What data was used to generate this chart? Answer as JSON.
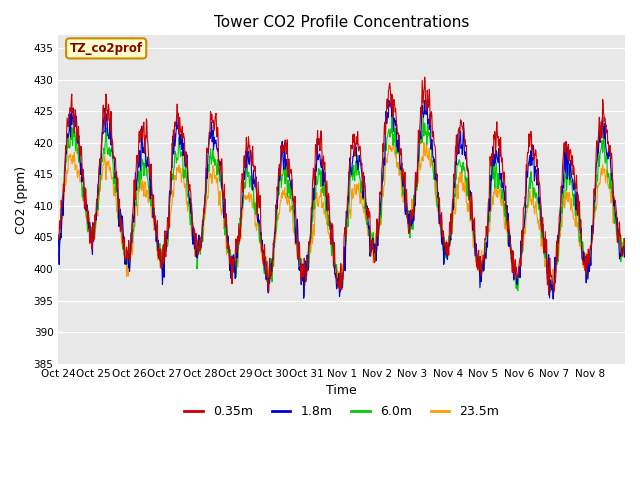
{
  "title": "Tower CO2 Profile Concentrations",
  "xlabel": "Time",
  "ylabel": "CO2 (ppm)",
  "ylim": [
    385,
    437
  ],
  "yticks": [
    385,
    390,
    395,
    400,
    405,
    410,
    415,
    420,
    425,
    430,
    435
  ],
  "annotation": "TZ_co2prof",
  "lines": [
    {
      "label": "0.35m",
      "color": "#cc0000",
      "lw": 0.8
    },
    {
      "label": "1.8m",
      "color": "#0000cc",
      "lw": 0.8
    },
    {
      "label": "6.0m",
      "color": "#00cc00",
      "lw": 0.8
    },
    {
      "label": "23.5m",
      "color": "#ff9900",
      "lw": 0.8
    }
  ],
  "bg_color": "#e8e8e8",
  "fig_bg": "#ffffff",
  "n_points": 1344,
  "xtick_labels": [
    "Oct 24",
    "Oct 25",
    "Oct 26",
    "Oct 27",
    "Oct 28",
    "Oct 29",
    "Oct 30",
    "Oct 31",
    "Nov 1",
    "Nov 2",
    "Nov 3",
    "Nov 4",
    "Nov 5",
    "Nov 6",
    "Nov 7",
    "Nov 8"
  ],
  "legend_labels": [
    "0.35m",
    "1.8m",
    "6.0m",
    "23.5m"
  ],
  "legend_colors": [
    "#cc0000",
    "#0000cc",
    "#00cc00",
    "#ff9900"
  ],
  "title_fontsize": 11,
  "axis_fontsize": 9,
  "tick_fontsize": 7.5,
  "figw": 6.4,
  "figh": 4.8,
  "dpi": 100
}
